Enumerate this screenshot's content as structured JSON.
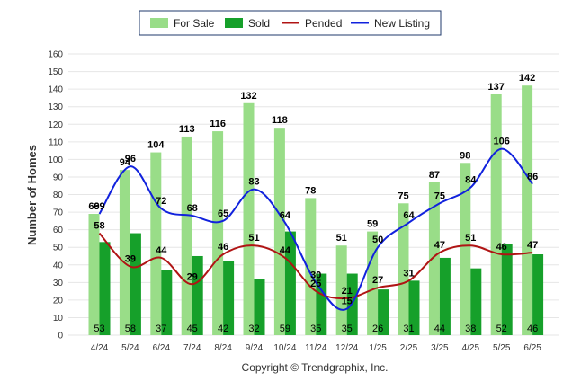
{
  "chart_data": {
    "type": "bar",
    "categories": [
      "4/24",
      "5/24",
      "6/24",
      "7/24",
      "8/24",
      "9/24",
      "10/24",
      "11/24",
      "12/24",
      "1/25",
      "2/25",
      "3/25",
      "4/25",
      "5/25",
      "6/25"
    ],
    "series": [
      {
        "name": "For Sale",
        "type": "bar",
        "color": "#99dd88",
        "values": [
          69,
          94,
          104,
          113,
          116,
          132,
          118,
          78,
          51,
          59,
          75,
          87,
          98,
          137,
          142
        ]
      },
      {
        "name": "Sold",
        "type": "bar",
        "color": "#16a02a",
        "values": [
          53,
          58,
          37,
          45,
          42,
          32,
          59,
          35,
          35,
          26,
          31,
          44,
          38,
          52,
          46
        ]
      },
      {
        "name": "Pended",
        "type": "line",
        "color": "#b01414",
        "values": [
          58,
          39,
          44,
          29,
          46,
          51,
          44,
          25,
          21,
          27,
          31,
          47,
          51,
          46,
          47
        ]
      },
      {
        "name": "New Listing",
        "type": "line",
        "color": "#1122dd",
        "values": [
          69,
          96,
          72,
          68,
          65,
          83,
          64,
          30,
          15,
          50,
          64,
          75,
          84,
          106,
          86
        ]
      }
    ],
    "ylabel": "Number of Homes",
    "xlabel": "",
    "ylim": [
      0,
      160
    ],
    "yticks": [
      "0",
      "10",
      "20",
      "30",
      "40",
      "50",
      "60",
      "70",
      "80",
      "90",
      "100",
      "110",
      "120",
      "130",
      "140",
      "150",
      "160"
    ],
    "legend_position": "top-center",
    "grid": true
  },
  "footer": {
    "credit": "Copyright © Trendgraphix, Inc."
  }
}
